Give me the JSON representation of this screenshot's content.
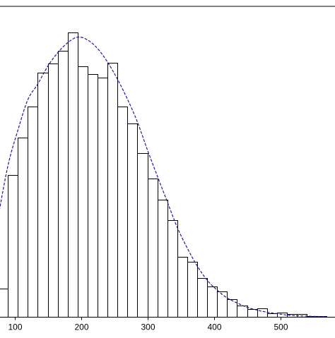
{
  "chart_data": {
    "type": "bar",
    "subtype": "histogram-with-density-curve",
    "title": "",
    "xlabel": "",
    "ylabel": "",
    "x_ticks": [
      "100",
      "200",
      "300",
      "400",
      "500"
    ],
    "x_tick_values": [
      100,
      200,
      300,
      400,
      500
    ],
    "xlim": [
      75,
      575
    ],
    "bin_width": 15,
    "ylim": [
      0,
      420
    ],
    "grid": false,
    "legend": "none",
    "bins": [
      {
        "start": 75,
        "count": 40
      },
      {
        "start": 90,
        "count": 200
      },
      {
        "start": 105,
        "count": 252
      },
      {
        "start": 120,
        "count": 296
      },
      {
        "start": 135,
        "count": 343
      },
      {
        "start": 150,
        "count": 356
      },
      {
        "start": 165,
        "count": 374
      },
      {
        "start": 180,
        "count": 400
      },
      {
        "start": 195,
        "count": 352
      },
      {
        "start": 210,
        "count": 341
      },
      {
        "start": 225,
        "count": 336
      },
      {
        "start": 240,
        "count": 357
      },
      {
        "start": 255,
        "count": 296
      },
      {
        "start": 270,
        "count": 272
      },
      {
        "start": 285,
        "count": 230
      },
      {
        "start": 300,
        "count": 195
      },
      {
        "start": 315,
        "count": 165
      },
      {
        "start": 330,
        "count": 136
      },
      {
        "start": 345,
        "count": 85
      },
      {
        "start": 360,
        "count": 78
      },
      {
        "start": 375,
        "count": 55
      },
      {
        "start": 390,
        "count": 43
      },
      {
        "start": 405,
        "count": 36
      },
      {
        "start": 420,
        "count": 25
      },
      {
        "start": 435,
        "count": 16
      },
      {
        "start": 450,
        "count": 11
      },
      {
        "start": 465,
        "count": 12
      },
      {
        "start": 480,
        "count": 5
      },
      {
        "start": 495,
        "count": 6
      },
      {
        "start": 510,
        "count": 4
      },
      {
        "start": 525,
        "count": 4
      },
      {
        "start": 540,
        "count": 1
      },
      {
        "start": 555,
        "count": 1
      }
    ],
    "curve": {
      "name": "",
      "style": "dashed",
      "color": "#1a1a9c",
      "points": [
        [
          75,
          138
        ],
        [
          90,
          212
        ],
        [
          105,
          262
        ],
        [
          120,
          305
        ],
        [
          135,
          327
        ],
        [
          150,
          352
        ],
        [
          165,
          371
        ],
        [
          180,
          385
        ],
        [
          195,
          393
        ],
        [
          210,
          389
        ],
        [
          225,
          377
        ],
        [
          240,
          358
        ],
        [
          255,
          334
        ],
        [
          270,
          306
        ],
        [
          285,
          274
        ],
        [
          300,
          235
        ],
        [
          315,
          198
        ],
        [
          330,
          162
        ],
        [
          345,
          126
        ],
        [
          360,
          97
        ],
        [
          375,
          72
        ],
        [
          390,
          52
        ],
        [
          405,
          38
        ],
        [
          420,
          27
        ],
        [
          435,
          20
        ],
        [
          450,
          14
        ],
        [
          465,
          10
        ],
        [
          480,
          7
        ],
        [
          495,
          5
        ],
        [
          510,
          3
        ],
        [
          525,
          2
        ],
        [
          540,
          1.5
        ],
        [
          555,
          1
        ],
        [
          570,
          0.7
        ]
      ]
    },
    "colors": {
      "bar_fill": "#ffffff",
      "bar_stroke": "#000000",
      "axis": "#000000",
      "curve": "#1a1a9c"
    }
  }
}
